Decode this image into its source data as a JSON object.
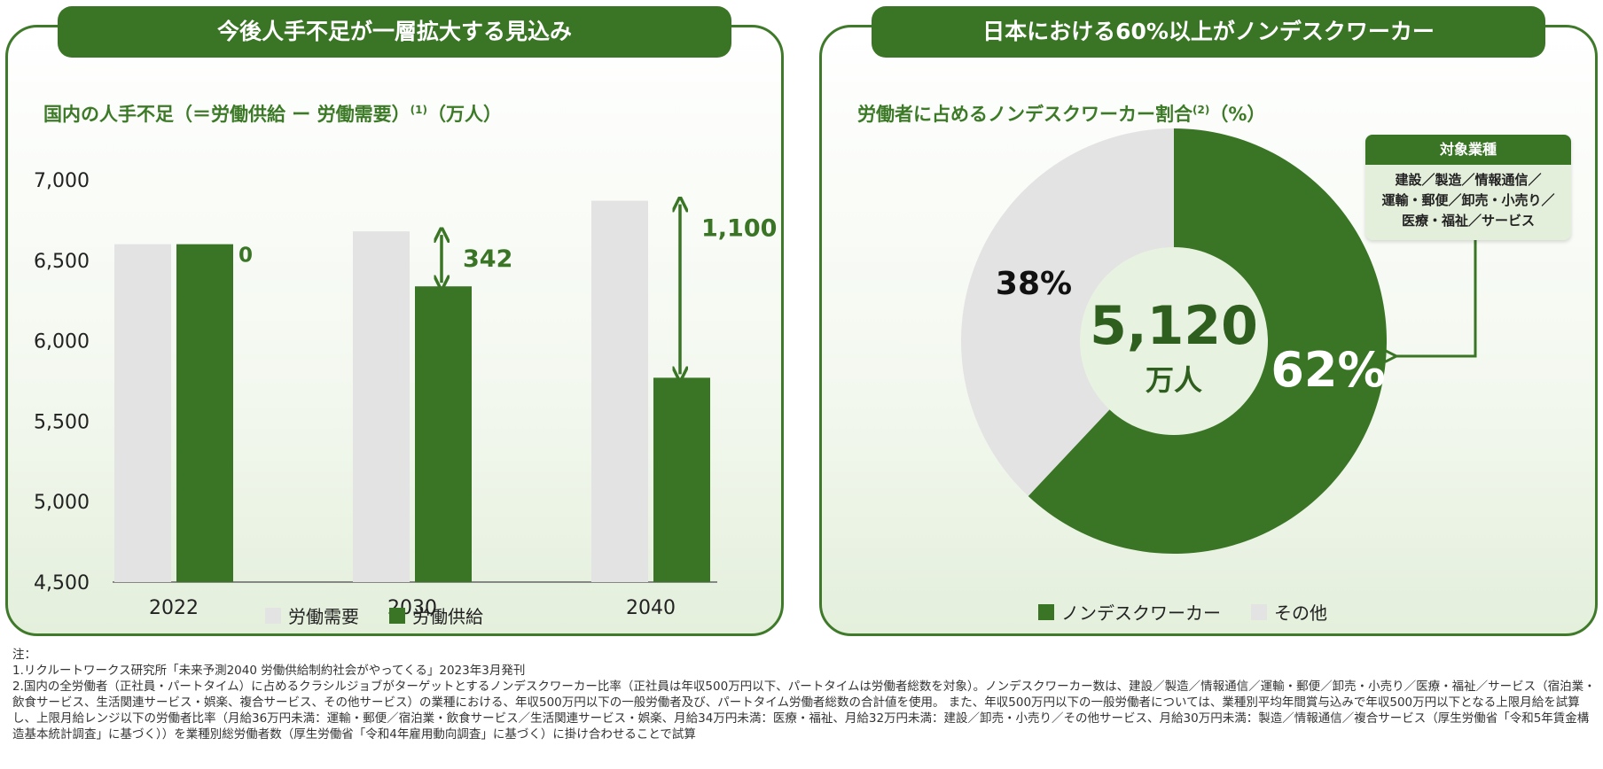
{
  "left_panel": {
    "title": "今後人手不足が一層拡大する見込み",
    "subtitle": "国内の人手不足（＝労働供給 ー 労働需要）",
    "subtitle_sup": "(1)",
    "subtitle_unit": "（万人）"
  },
  "right_panel": {
    "title": "日本における60%以上がノンデスクワーカー",
    "subtitle": "労働者に占めるノンデスクワーカー割合",
    "subtitle_sup": "(2)",
    "subtitle_unit": "（%）",
    "center_value": "5,120",
    "center_unit": "万人",
    "callout_title": "対象業種",
    "callout_lines": [
      "建設／製造／情報通信／",
      "運輸・郵便／卸売・小売り／",
      "医療・福祉／サービス"
    ]
  },
  "chart_data": [
    {
      "type": "bar",
      "categories": [
        "2022",
        "2030",
        "2040"
      ],
      "series": [
        {
          "name": "労働需要",
          "values": [
            6600,
            6680,
            6870
          ],
          "color": "#e3e3e3"
        },
        {
          "name": "労働供給",
          "values": [
            6600,
            6338,
            5770
          ],
          "color": "#3a7526"
        }
      ],
      "gap_labels": [
        "0",
        "342",
        "1,100"
      ],
      "ylim": [
        4500,
        7000
      ],
      "yticks": [
        "4,500",
        "5,000",
        "5,500",
        "6,000",
        "6,500",
        "7,000"
      ],
      "ytick_values": [
        4500,
        5000,
        5500,
        6000,
        6500,
        7000
      ],
      "legend": [
        "労働需要",
        "労働供給"
      ],
      "unit": "万人"
    },
    {
      "type": "pie",
      "labels": [
        "ノンデスクワーカー",
        "その他"
      ],
      "values": [
        62,
        38
      ],
      "value_labels": [
        "62%",
        "38%"
      ],
      "colors": [
        "#3a7526",
        "#e3e3e3"
      ],
      "legend": [
        "ノンデスクワーカー",
        "その他"
      ]
    }
  ],
  "notes": {
    "heading": "注：",
    "note1": "1.リクルートワークス研究所「未来予測2040 労働供給制約社会がやってくる」2023年3月発刊",
    "note2": "2.国内の全労働者（正社員・パートタイム）に占めるクラシルジョブがターゲットとするノンデスクワーカー比率（正社員は年収500万円以下、パートタイムは労働者総数を対象）。ノンデスクワーカー数は、建設／製造／情報通信／運輸・郵便／卸売・小売り／医療・福祉／サービス（宿泊業・飲食サービス、生活関連サービス・娯楽、複合サービス、その他サービス）の業種における、年収500万円以下の一般労働者及び、パートタイム労働者総数の合計値を使用。 また、年収500万円以下の一般労働者については、業種別平均年間賞与込みで年収500万円以下となる上限月給を試算し、上限月給レンジ以下の労働者比率（月給36万円未満：運輸・郵便／宿泊業・飲食サービス／生活関連サービス・娯楽、月給34万円未満：医療・福祉、月給32万円未満：建設／卸売・小売り／その他サービス、月給30万円未満：製造／情報通信／複合サービス（厚生労働省「令和5年賃金構造基本統計調査」に基づく））を業種別総労働者数（厚生労働省「令和4年雇用動向調査」に基づく）に掛け合わせることで試算"
  }
}
